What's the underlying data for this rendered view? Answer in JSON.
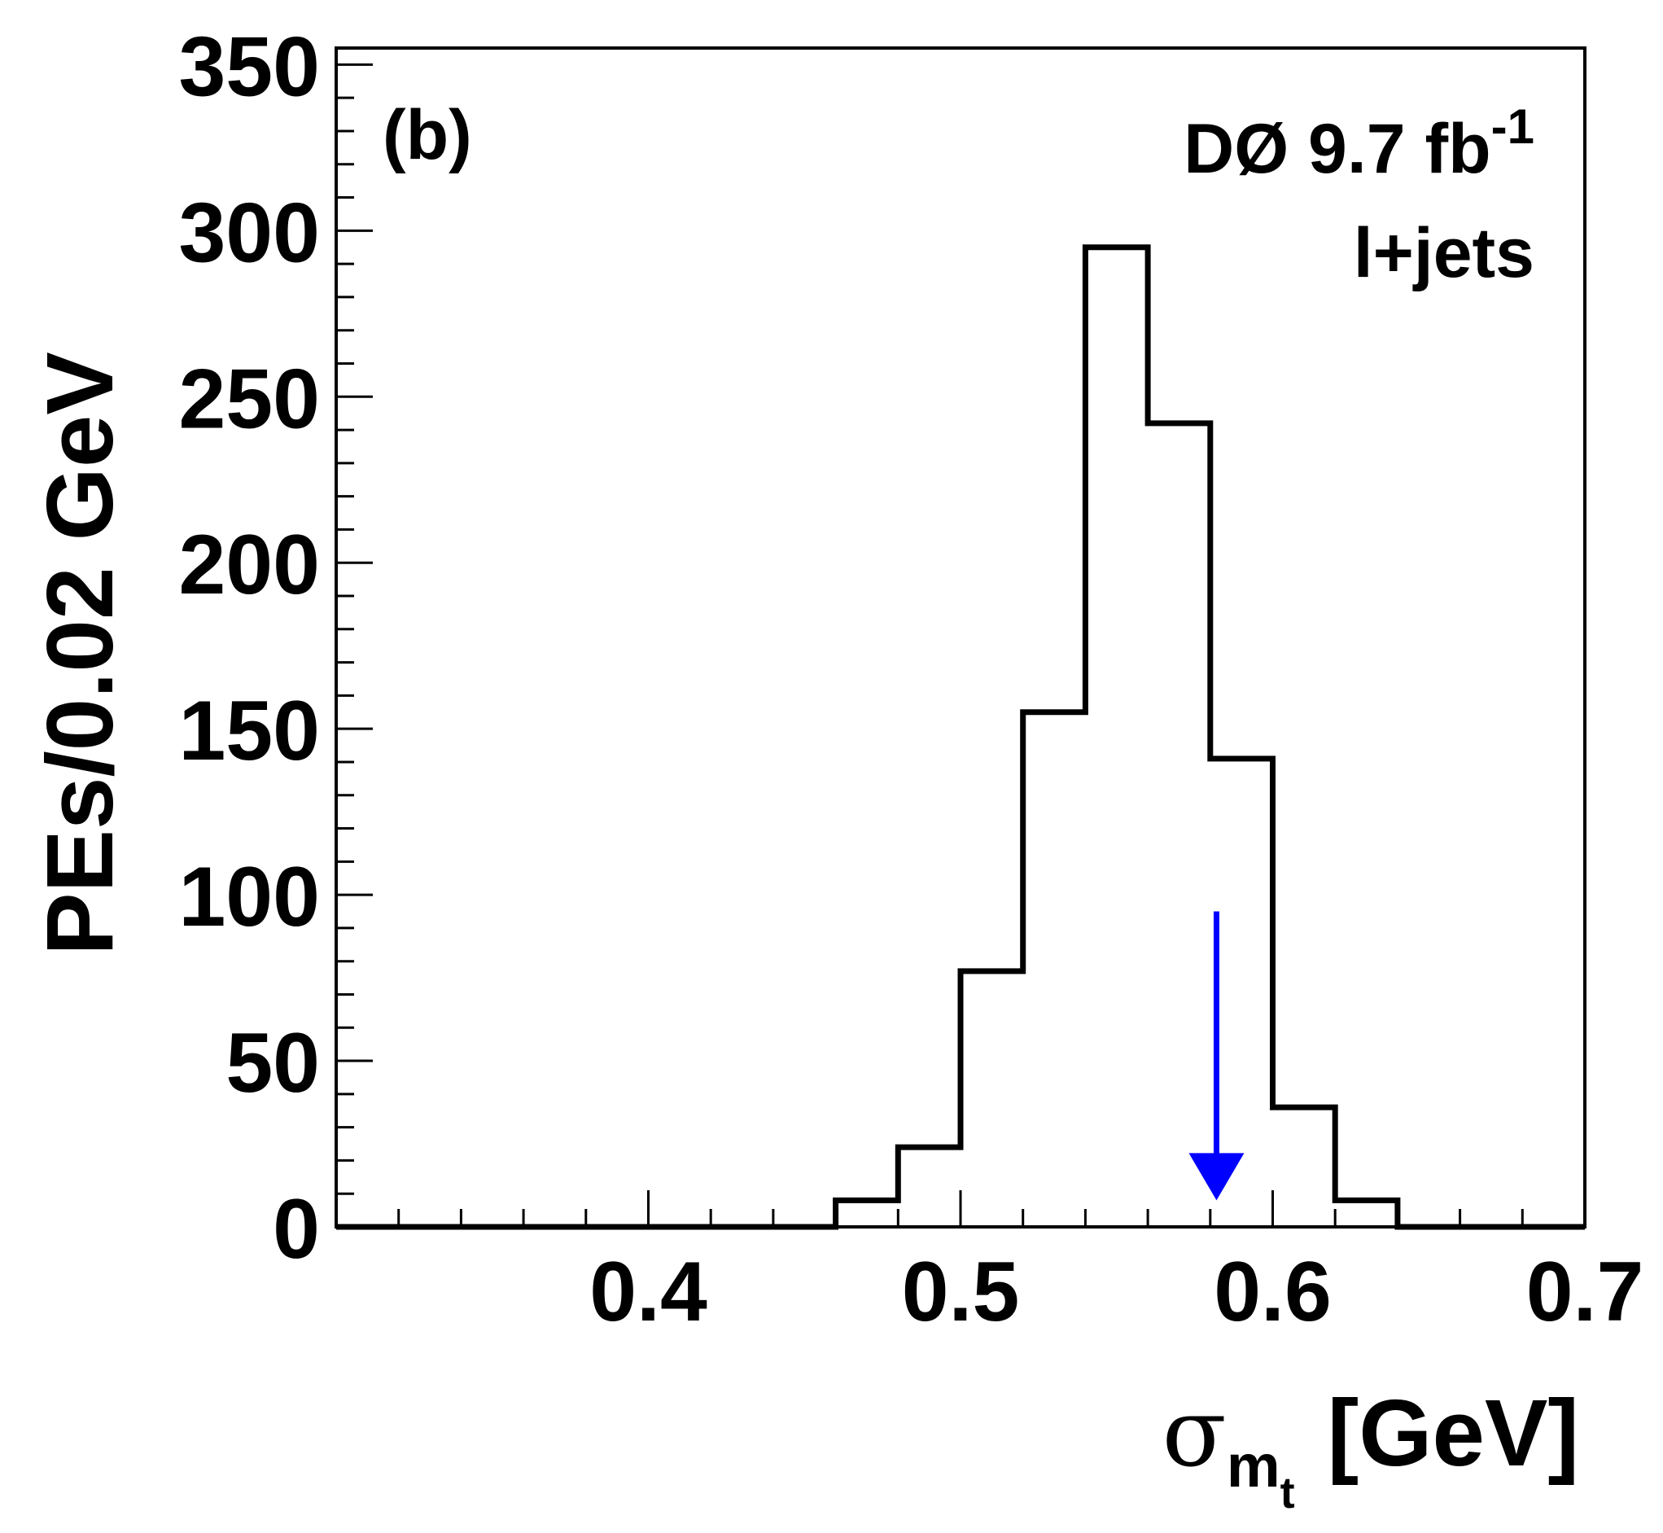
{
  "chart_data": {
    "type": "histogram",
    "panel_label": "(b)",
    "experiment_label": "DØ 9.7 fb",
    "experiment_label_superscript": "-1",
    "channel_label": "l+jets",
    "xlabel_symbol": "σ",
    "xlabel_sub1": "m",
    "xlabel_sub2": "t",
    "xlabel_units": "[GeV]",
    "ylabel": "PEs/0.02 GeV",
    "xlim": [
      0.3,
      0.7
    ],
    "ylim": [
      0,
      355
    ],
    "x_ticks": [
      0.4,
      0.5,
      0.6,
      0.7
    ],
    "x_tick_labels": [
      "0.4",
      "0.5",
      "0.6",
      "0.7"
    ],
    "y_ticks": [
      0,
      50,
      100,
      150,
      200,
      250,
      300,
      350
    ],
    "y_tick_labels": [
      "0",
      "50",
      "100",
      "150",
      "200",
      "250",
      "300",
      "350"
    ],
    "bin_width": 0.02,
    "bins": [
      {
        "x_low": 0.3,
        "x_high": 0.36,
        "count": 0
      },
      {
        "x_low": 0.36,
        "x_high": 0.38,
        "count": 0
      },
      {
        "x_low": 0.38,
        "x_high": 0.4,
        "count": 0
      },
      {
        "x_low": 0.4,
        "x_high": 0.42,
        "count": 0
      },
      {
        "x_low": 0.42,
        "x_high": 0.44,
        "count": 0
      },
      {
        "x_low": 0.44,
        "x_high": 0.46,
        "count": 0
      },
      {
        "x_low": 0.46,
        "x_high": 0.48,
        "count": 8
      },
      {
        "x_low": 0.48,
        "x_high": 0.5,
        "count": 24
      },
      {
        "x_low": 0.5,
        "x_high": 0.52,
        "count": 77
      },
      {
        "x_low": 0.52,
        "x_high": 0.54,
        "count": 155
      },
      {
        "x_low": 0.54,
        "x_high": 0.56,
        "count": 295
      },
      {
        "x_low": 0.56,
        "x_high": 0.58,
        "count": 242
      },
      {
        "x_low": 0.58,
        "x_high": 0.6,
        "count": 141
      },
      {
        "x_low": 0.6,
        "x_high": 0.62,
        "count": 36
      },
      {
        "x_low": 0.62,
        "x_high": 0.64,
        "count": 8
      },
      {
        "x_low": 0.64,
        "x_high": 0.7,
        "count": 0
      }
    ],
    "marker": {
      "type": "arrow",
      "x": 0.582,
      "y_top": 95,
      "y_bottom": 8,
      "color": "#0000ff"
    },
    "line_color": "#000000",
    "grid": false,
    "legend": "none"
  }
}
